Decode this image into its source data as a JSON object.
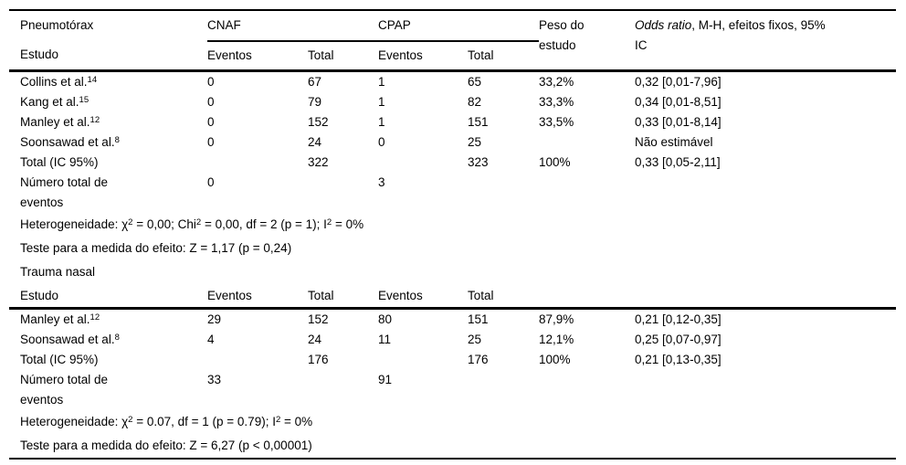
{
  "header": {
    "section_title": "Pneumotórax",
    "study_col": "Estudo",
    "group_cnaf": "CNAF",
    "group_cpap": "CPAP",
    "events_col": "Eventos",
    "total_col": "Total",
    "events_col2": "Eventos",
    "total_col2": "Total",
    "weight_col": "Peso do\nestudo",
    "odds_col_italic": "Odds ratio",
    "odds_col_rest": ", M-H, efeitos fixos, 95%\nIC"
  },
  "sections": [
    {
      "rows": [
        {
          "study": "Collins et al.^14^",
          "cnaf_events": "0",
          "cnaf_total": "67",
          "cpap_events": "1",
          "cpap_total": "65",
          "weight": "33,2%",
          "odds_ratio": "0,32 [0,01-7,96]"
        },
        {
          "study": "Kang et al.^15^",
          "cnaf_events": "0",
          "cnaf_total": "79",
          "cpap_events": "1",
          "cpap_total": "82",
          "weight": "33,3%",
          "odds_ratio": "0,34 [0,01-8,51]"
        },
        {
          "study": "Manley et al.^12^",
          "cnaf_events": "0",
          "cnaf_total": "152",
          "cpap_events": "1",
          "cpap_total": "151",
          "weight": "33,5%",
          "odds_ratio": "0,33 [0,01-8,14]"
        },
        {
          "study": "Soonsawad et al.^8^",
          "cnaf_events": "0",
          "cnaf_total": "24",
          "cpap_events": "0",
          "cpap_total": "25",
          "weight": "",
          "odds_ratio": "Não estimável"
        },
        {
          "study": "Total (IC 95%)",
          "cnaf_events": "",
          "cnaf_total": "322",
          "cpap_events": "",
          "cpap_total": "323",
          "weight": "100%",
          "odds_ratio": "0,33 [0,05-2,11]"
        },
        {
          "study": "Número total de\neventos",
          "cnaf_events": "0",
          "cnaf_total": "",
          "cpap_events": "3",
          "cpap_total": "",
          "weight": "",
          "odds_ratio": ""
        }
      ],
      "notes": [
        "Heterogeneidade: χ^2^ = 0,00; Chi^2^ = 0,00, df = 2 (p = 1); I^2^ = 0%",
        "Teste para a medida do efeito: Z = 1,17 (p = 0,24)"
      ]
    },
    {
      "title": "Trauma nasal",
      "columns": [
        "Estudo",
        "Eventos",
        "Total",
        "Eventos",
        "Total"
      ],
      "rows": [
        {
          "study": "Manley et al.^12^",
          "cnaf_events": "29",
          "cnaf_total": "152",
          "cpap_events": "80",
          "cpap_total": "151",
          "weight": "87,9%",
          "odds_ratio": "0,21 [0,12-0,35]"
        },
        {
          "study": "Soonsawad et al.^8^",
          "cnaf_events": "4",
          "cnaf_total": "24",
          "cpap_events": "11",
          "cpap_total": "25",
          "weight": "12,1%",
          "odds_ratio": "0,25 [0,07-0,97]"
        },
        {
          "study": "Total (IC 95%)",
          "cnaf_events": "",
          "cnaf_total": "176",
          "cpap_events": "",
          "cpap_total": "176",
          "weight": "100%",
          "odds_ratio": "0,21 [0,13-0,35]"
        },
        {
          "study": "Número total de\neventos",
          "cnaf_events": "33",
          "cnaf_total": "",
          "cpap_events": "91",
          "cpap_total": "",
          "weight": "",
          "odds_ratio": ""
        }
      ],
      "notes": [
        "Heterogeneidade: χ^2^ = 0.07, df = 1 (p = 0.79); I^2^ = 0%",
        "Teste para a medida do efeito: Z = 6,27 (p < 0,00001)"
      ]
    }
  ],
  "colors": {
    "text": "#000000",
    "background": "#ffffff",
    "rule": "#000000"
  }
}
